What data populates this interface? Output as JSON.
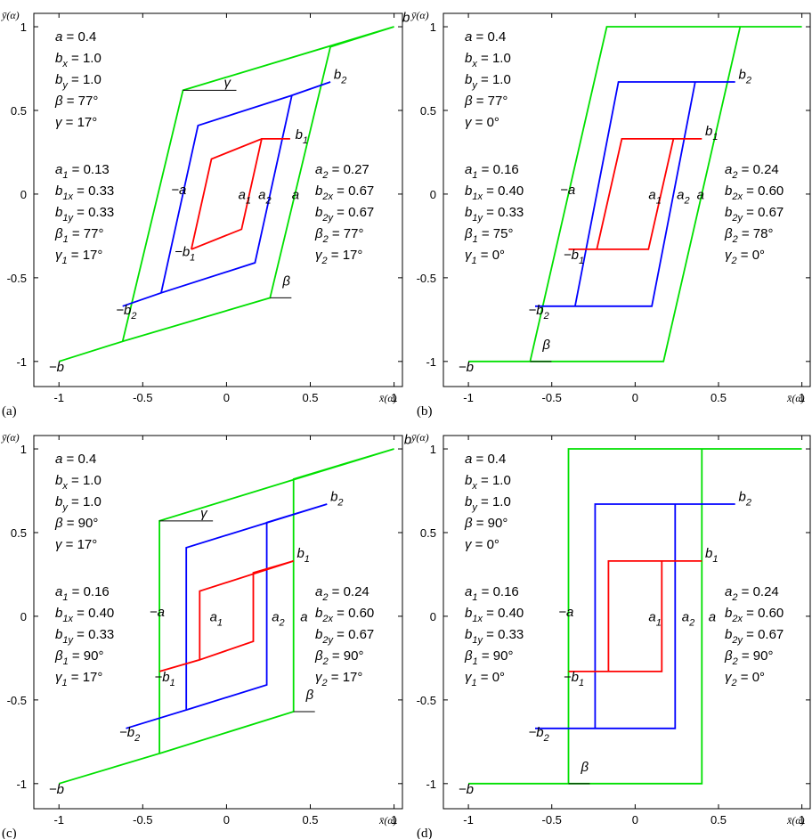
{
  "chart_data": [
    {
      "type": "line",
      "panel_label": "(a)",
      "xlabel": "x̄(α)",
      "ylabel": "ȳ(α)",
      "xlim": [
        -1.15,
        1.05
      ],
      "ylim": [
        -1.15,
        1.08
      ],
      "x_ticks": [
        -1,
        -0.5,
        0,
        0.5,
        1
      ],
      "x_tick_labels": [
        "-1",
        "-0.5",
        "0",
        "0.5",
        "1"
      ],
      "y_ticks": [
        -1,
        -0.5,
        0,
        0.5,
        1
      ],
      "y_tick_labels": [
        "-1",
        "-0.5",
        "0",
        "0.5",
        "1"
      ],
      "params_main": [
        "a = 0.4",
        "bx = 1.0",
        "by = 1.0",
        "β = 77°",
        "γ = 17°"
      ],
      "params_loop1": [
        "a1 = 0.13",
        "b1x = 0.33",
        "b1y = 0.33",
        "β1 = 77°",
        "γ1 = 17°"
      ],
      "params_loop2": [
        "a2 = 0.27",
        "b2x = 0.67",
        "b2y = 0.67",
        "β2 = 77°",
        "γ2 = 17°"
      ],
      "angle_labels": [
        "γ",
        "β"
      ],
      "series": [
        {
          "color": "#00e000",
          "points": [
            [
              -1.0,
              -1.0
            ],
            [
              -0.62,
              -0.88
            ],
            [
              -0.26,
              0.62
            ],
            [
              1.0,
              1.0
            ],
            [
              0.62,
              0.88
            ],
            [
              0.26,
              -0.62
            ],
            [
              -0.62,
              -0.88
            ]
          ]
        },
        {
          "color": "#0000ff",
          "points": [
            [
              -0.62,
              -0.67
            ],
            [
              -0.39,
              -0.59
            ],
            [
              -0.17,
              0.41
            ],
            [
              0.39,
              0.59
            ],
            [
              0.62,
              0.67
            ],
            [
              0.39,
              0.59
            ],
            [
              0.17,
              -0.41
            ],
            [
              -0.39,
              -0.59
            ]
          ]
        },
        {
          "color": "#ff0000",
          "points": [
            [
              -0.21,
              -0.33
            ],
            [
              -0.09,
              0.21
            ],
            [
              0.21,
              0.33
            ],
            [
              0.38,
              0.33
            ],
            [
              0.21,
              0.33
            ],
            [
              0.09,
              -0.21
            ],
            [
              -0.21,
              -0.33
            ]
          ]
        }
      ],
      "curve_labels": [
        {
          "text": "b",
          "x": 1.05,
          "y": 1.03
        },
        {
          "text": "−b",
          "x": -1.06,
          "y": -1.06
        },
        {
          "text": "b2",
          "x": 0.64,
          "y": 0.69
        },
        {
          "text": "−b2",
          "x": -0.66,
          "y": -0.72
        },
        {
          "text": "b1",
          "x": 0.41,
          "y": 0.33
        },
        {
          "text": "−b1",
          "x": -0.31,
          "y": -0.37
        },
        {
          "text": "−a",
          "x": -0.33,
          "y": 0.0
        },
        {
          "text": "a1",
          "x": 0.07,
          "y": -0.03
        },
        {
          "text": "a2",
          "x": 0.19,
          "y": -0.03
        },
        {
          "text": "a",
          "x": 0.39,
          "y": -0.03
        }
      ]
    },
    {
      "type": "line",
      "panel_label": "(b)",
      "xlabel": "x̄(α)",
      "ylabel": "ȳ(α)",
      "xlim": [
        -1.15,
        1.05
      ],
      "ylim": [
        -1.15,
        1.08
      ],
      "x_ticks": [
        -1,
        -0.5,
        0,
        0.5,
        1
      ],
      "x_tick_labels": [
        "-1",
        "-0.5",
        "0",
        "0.5",
        "1"
      ],
      "y_ticks": [
        -1,
        -0.5,
        0,
        0.5,
        1
      ],
      "y_tick_labels": [
        "-1",
        "-0.5",
        "0",
        "0.5",
        "1"
      ],
      "params_main": [
        "a = 0.4",
        "bx = 1.0",
        "by = 1.0",
        "β = 77°",
        "γ = 0°"
      ],
      "params_loop1": [
        "a1 = 0.16",
        "b1x = 0.40",
        "b1y = 0.33",
        "β1 = 75°",
        "γ1 = 0°"
      ],
      "params_loop2": [
        "a2 = 0.24",
        "b2x = 0.60",
        "b2y = 0.67",
        "β2 = 78°",
        "γ2 = 0°"
      ],
      "angle_labels": [
        "β"
      ],
      "series": [
        {
          "color": "#00e000",
          "points": [
            [
              -1.0,
              -1.0
            ],
            [
              0.17,
              -1.0
            ],
            [
              0.63,
              1.0
            ],
            [
              1.0,
              1.0
            ],
            [
              -0.17,
              1.0
            ],
            [
              -0.63,
              -1.0
            ]
          ]
        },
        {
          "color": "#0000ff",
          "points": [
            [
              -0.6,
              -0.67
            ],
            [
              0.1,
              -0.67
            ],
            [
              0.36,
              0.67
            ],
            [
              0.6,
              0.67
            ],
            [
              -0.1,
              0.67
            ],
            [
              -0.36,
              -0.67
            ]
          ]
        },
        {
          "color": "#ff0000",
          "points": [
            [
              -0.4,
              -0.33
            ],
            [
              0.08,
              -0.33
            ],
            [
              0.23,
              0.33
            ],
            [
              0.4,
              0.33
            ],
            [
              -0.08,
              0.33
            ],
            [
              -0.23,
              -0.33
            ]
          ]
        }
      ],
      "curve_labels": [
        {
          "text": "b",
          "x": 1.06,
          "y": 1.03
        },
        {
          "text": "−b",
          "x": -1.06,
          "y": -1.06
        },
        {
          "text": "b2",
          "x": 0.62,
          "y": 0.69
        },
        {
          "text": "−b2",
          "x": -0.64,
          "y": -0.72
        },
        {
          "text": "b1",
          "x": 0.42,
          "y": 0.35
        },
        {
          "text": "−b1",
          "x": -0.43,
          "y": -0.39
        },
        {
          "text": "−a",
          "x": -0.45,
          "y": 0.0
        },
        {
          "text": "a1",
          "x": 0.08,
          "y": -0.03
        },
        {
          "text": "a2",
          "x": 0.25,
          "y": -0.03
        },
        {
          "text": "a",
          "x": 0.37,
          "y": -0.03
        }
      ]
    },
    {
      "type": "line",
      "panel_label": "(c)",
      "xlabel": "x̄(α)",
      "ylabel": "ȳ(α)",
      "xlim": [
        -1.15,
        1.05
      ],
      "ylim": [
        -1.15,
        1.08
      ],
      "x_ticks": [
        -1,
        -0.5,
        0,
        0.5,
        1
      ],
      "x_tick_labels": [
        "-1",
        "-0.5",
        "0",
        "0.5",
        "1"
      ],
      "y_ticks": [
        -1,
        -0.5,
        0,
        0.5,
        1
      ],
      "y_tick_labels": [
        "-1",
        "-0.5",
        "0",
        "0.5",
        "1"
      ],
      "params_main": [
        "a = 0.4",
        "bx = 1.0",
        "by = 1.0",
        "β = 90°",
        "γ = 17°"
      ],
      "params_loop1": [
        "a1 = 0.16",
        "b1x = 0.40",
        "b1y = 0.33",
        "β1 = 90°",
        "γ1 = 17°"
      ],
      "params_loop2": [
        "a2 = 0.24",
        "b2x = 0.60",
        "b2y = 0.67",
        "β2 = 90°",
        "γ2 = 17°"
      ],
      "angle_labels": [
        "γ",
        "β"
      ],
      "series": [
        {
          "color": "#00e000",
          "points": [
            [
              -1.0,
              -1.0
            ],
            [
              -0.4,
              -0.82
            ],
            [
              -0.4,
              0.57
            ],
            [
              1.0,
              1.0
            ],
            [
              0.4,
              0.82
            ],
            [
              0.4,
              -0.57
            ],
            [
              -0.4,
              -0.82
            ]
          ]
        },
        {
          "color": "#0000ff",
          "points": [
            [
              -0.6,
              -0.67
            ],
            [
              -0.24,
              -0.56
            ],
            [
              -0.24,
              0.41
            ],
            [
              0.6,
              0.67
            ],
            [
              0.24,
              0.56
            ],
            [
              0.24,
              -0.41
            ],
            [
              -0.24,
              -0.56
            ]
          ]
        },
        {
          "color": "#ff0000",
          "points": [
            [
              -0.4,
              -0.33
            ],
            [
              -0.16,
              -0.26
            ],
            [
              -0.16,
              0.15
            ],
            [
              0.4,
              0.33
            ],
            [
              0.16,
              0.26
            ],
            [
              0.16,
              -0.15
            ],
            [
              -0.16,
              -0.26
            ]
          ]
        }
      ],
      "curve_labels": [
        {
          "text": "b",
          "x": 1.06,
          "y": 1.03
        },
        {
          "text": "−b",
          "x": -1.06,
          "y": -1.06
        },
        {
          "text": "b2",
          "x": 0.62,
          "y": 0.69
        },
        {
          "text": "−b2",
          "x": -0.64,
          "y": -0.72
        },
        {
          "text": "b1",
          "x": 0.42,
          "y": 0.35
        },
        {
          "text": "−b1",
          "x": -0.43,
          "y": -0.39
        },
        {
          "text": "−a",
          "x": -0.46,
          "y": 0.0
        },
        {
          "text": "a1",
          "x": -0.1,
          "y": -0.03
        },
        {
          "text": "a2",
          "x": 0.27,
          "y": -0.03
        },
        {
          "text": "a",
          "x": 0.44,
          "y": -0.03
        }
      ]
    },
    {
      "type": "line",
      "panel_label": "(d)",
      "xlabel": "x̄(α)",
      "ylabel": "ȳ(α)",
      "xlim": [
        -1.15,
        1.05
      ],
      "ylim": [
        -1.15,
        1.08
      ],
      "x_ticks": [
        -1,
        -0.5,
        0,
        0.5,
        1
      ],
      "x_tick_labels": [
        "-1",
        "-0.5",
        "0",
        "0.5",
        "1"
      ],
      "y_ticks": [
        -1,
        -0.5,
        0,
        0.5,
        1
      ],
      "y_tick_labels": [
        "-1",
        "-0.5",
        "0",
        "0.5",
        "1"
      ],
      "params_main": [
        "a = 0.4",
        "bx = 1.0",
        "by = 1.0",
        "β = 90°",
        "γ = 0°"
      ],
      "params_loop1": [
        "a1 = 0.16",
        "b1x = 0.40",
        "b1y = 0.33",
        "β1 = 90°",
        "γ1 = 0°"
      ],
      "params_loop2": [
        "a2 = 0.24",
        "b2x = 0.60",
        "b2y = 0.67",
        "β2 = 90°",
        "γ2 = 0°"
      ],
      "angle_labels": [
        "β"
      ],
      "series": [
        {
          "color": "#00e000",
          "points": [
            [
              -1.0,
              -1.0
            ],
            [
              0.4,
              -1.0
            ],
            [
              0.4,
              1.0
            ],
            [
              1.0,
              1.0
            ],
            [
              -0.4,
              1.0
            ],
            [
              -0.4,
              -1.0
            ]
          ]
        },
        {
          "color": "#0000ff",
          "points": [
            [
              -0.6,
              -0.67
            ],
            [
              0.24,
              -0.67
            ],
            [
              0.24,
              0.67
            ],
            [
              0.6,
              0.67
            ],
            [
              -0.24,
              0.67
            ],
            [
              -0.24,
              -0.67
            ]
          ]
        },
        {
          "color": "#ff0000",
          "points": [
            [
              -0.4,
              -0.33
            ],
            [
              0.16,
              -0.33
            ],
            [
              0.16,
              0.33
            ],
            [
              0.4,
              0.33
            ],
            [
              -0.16,
              0.33
            ],
            [
              -0.16,
              -0.33
            ]
          ]
        }
      ],
      "curve_labels": [
        {
          "text": "b",
          "x": 1.06,
          "y": 1.03
        },
        {
          "text": "−b",
          "x": -1.06,
          "y": -1.06
        },
        {
          "text": "b2",
          "x": 0.62,
          "y": 0.69
        },
        {
          "text": "−b2",
          "x": -0.64,
          "y": -0.72
        },
        {
          "text": "b1",
          "x": 0.42,
          "y": 0.35
        },
        {
          "text": "−b1",
          "x": -0.43,
          "y": -0.39
        },
        {
          "text": "−a",
          "x": -0.46,
          "y": 0.0
        },
        {
          "text": "a1",
          "x": 0.08,
          "y": -0.03
        },
        {
          "text": "a2",
          "x": 0.28,
          "y": -0.03
        },
        {
          "text": "a",
          "x": 0.44,
          "y": -0.03
        }
      ]
    }
  ]
}
